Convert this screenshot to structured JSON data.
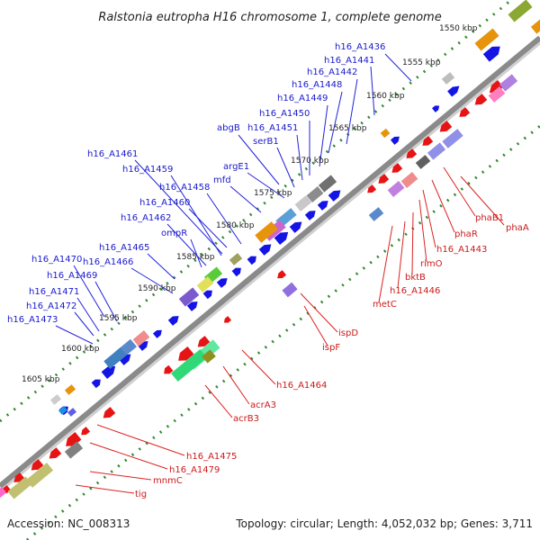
{
  "title": "Ralstonia eutropha H16 chromosome 1, complete genome",
  "footer": {
    "accession": "Accession: NC_008313",
    "summary": "Topology: circular; Length: 4,052,032 bp; Genes: 3,711"
  },
  "kbp_marks": [
    "1550 kbp",
    "1555 kbp",
    "1560 kbp",
    "1565 kbp",
    "1570 kbp",
    "1575 kbp",
    "1580 kbp",
    "1585 kbp",
    "1590 kbp",
    "1595 kbp",
    "1600 kbp",
    "1605 kbp"
  ],
  "forward_genes": [
    "h16_A1436",
    "h16_A1441",
    "h16_A1442",
    "h16_A1448",
    "h16_A1449",
    "h16_A1450",
    "h16_A1451",
    "abgB",
    "serB1",
    "argE1",
    "mfd",
    "h16_A1461",
    "h16_A1459",
    "h16_A1458",
    "h16_A1460",
    "h16_A1462",
    "ompR",
    "h16_A1465",
    "h16_A1466",
    "h16_A1470",
    "h16_A1469",
    "h16_A1471",
    "h16_A1472",
    "h16_A1473"
  ],
  "reverse_genes": [
    "phaB1",
    "phaA",
    "phaR",
    "h16_A1443",
    "rimO",
    "bktB",
    "h16_A1446",
    "metC",
    "ispD",
    "ispF",
    "h16_A1464",
    "acrA3",
    "acrB3",
    "h16_A1475",
    "h16_A1479",
    "mnmC",
    "tig"
  ],
  "colors": {
    "forward_label": "#1a1acc",
    "reverse_label": "#cc1a1a",
    "backbone": "#8a8a8a",
    "tick": "#2f7a2f"
  }
}
